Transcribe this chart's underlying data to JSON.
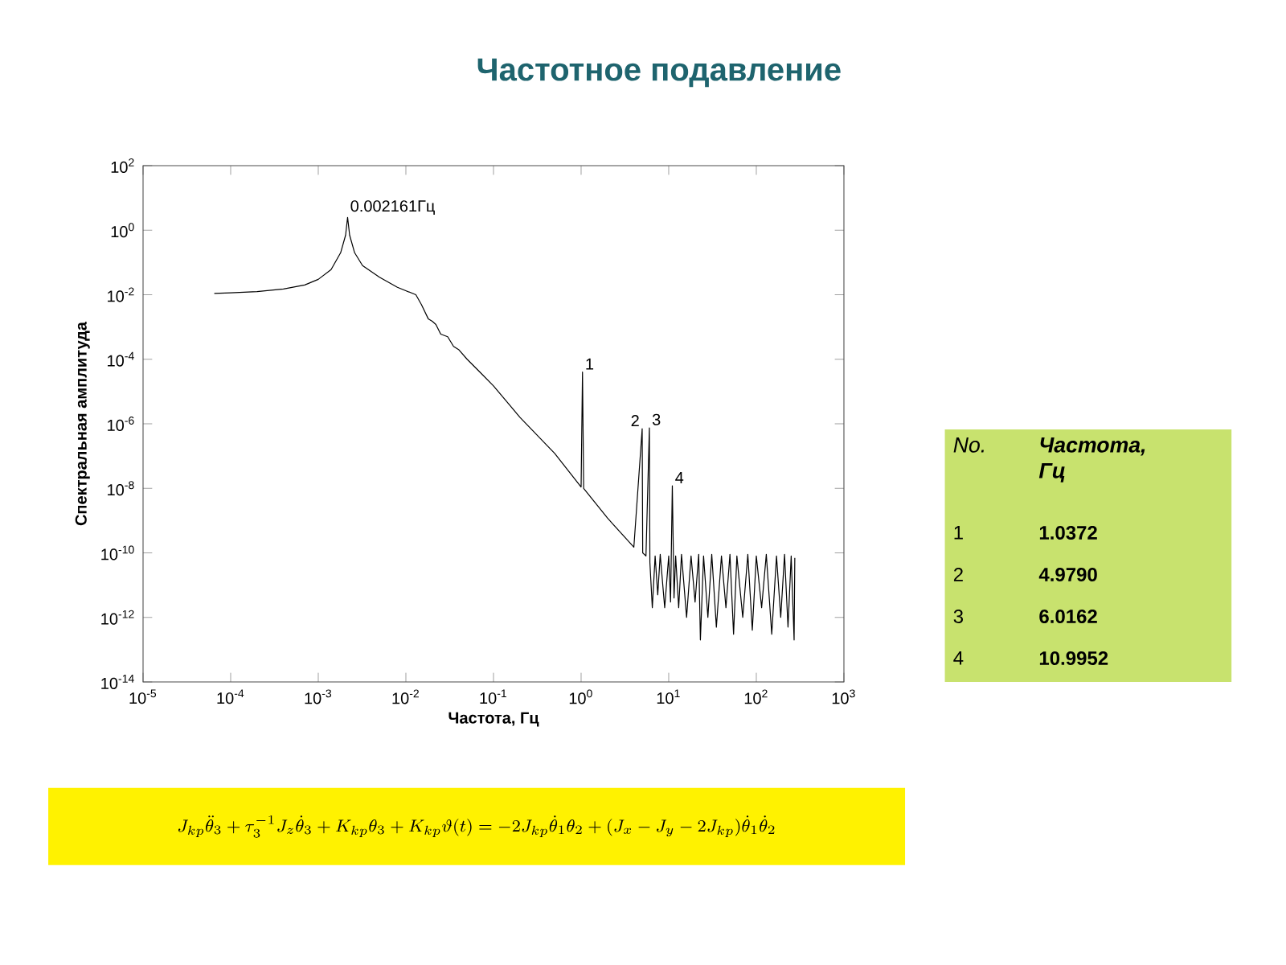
{
  "chart_data": [
    {
      "type": "line",
      "title": "Частотное подавление",
      "xlabel": "Частота, Гц",
      "ylabel": "Спектральная амплитуда",
      "log": "xy",
      "color": "#000000",
      "marker": "none",
      "xlim": [
        1e-05,
        1000
      ],
      "ylim": [
        1e-14,
        100
      ],
      "xticks": [
        {
          "value": 1e-05,
          "label": "10$^{-5}$"
        },
        {
          "value": 0.0001,
          "label": "10$^{-4}$"
        },
        {
          "value": 0.001,
          "label": "10$^{-3}$"
        },
        {
          "value": 0.01,
          "label": "10$^{-2}$"
        },
        {
          "value": 0.1,
          "label": "10$^{-1}$"
        },
        {
          "value": 1,
          "label": "10$^{0}$"
        },
        {
          "value": 10,
          "label": "10$^{1}$"
        },
        {
          "value": 100,
          "label": "10$^{2}$"
        },
        {
          "value": 1000,
          "label": "10$^{3}$"
        }
      ],
      "yticks": [
        {
          "value": 1e-14,
          "label": "10$^{-14}$"
        },
        {
          "value": 1e-12,
          "label": "10$^{-12}$"
        },
        {
          "value": 1e-10,
          "label": "10$^{-10}$"
        },
        {
          "value": 1e-08,
          "label": "10$^{-8}$"
        },
        {
          "value": 1e-06,
          "label": "10$^{-6}$"
        },
        {
          "value": 0.0001,
          "label": "10$^{-4}$"
        },
        {
          "value": 0.01,
          "label": "10$^{-2}$"
        },
        {
          "value": 1,
          "label": "10$^{0}$"
        },
        {
          "value": 100,
          "label": "10$^{2}$"
        }
      ],
      "x": [
        6.5e-05,
        0.0001,
        0.0002,
        0.0004,
        0.0007,
        0.001,
        0.0014,
        0.0018,
        0.00205,
        0.002161,
        0.00228,
        0.0026,
        0.0032,
        0.005,
        0.008,
        0.013,
        0.015,
        0.018,
        0.02,
        0.022,
        0.025,
        0.03,
        0.035,
        0.04,
        0.05,
        0.07,
        0.1,
        0.2,
        0.5,
        1.0,
        1.0372,
        1.07,
        2,
        4,
        4.979,
        5.05,
        5.5,
        6.0162,
        6.1,
        6.5,
        7,
        7.5,
        8,
        9,
        10,
        10.5,
        10.9952,
        11.5,
        12,
        13,
        14,
        16,
        18,
        20,
        22,
        23,
        25,
        28,
        31,
        35,
        40,
        45,
        50,
        55,
        60,
        70,
        80,
        90,
        100,
        115,
        130,
        150,
        170,
        190,
        210,
        230,
        250,
        270,
        275
      ],
      "values": [
        0.011,
        0.0115,
        0.0125,
        0.015,
        0.02,
        0.03,
        0.06,
        0.2,
        0.7,
        2.5,
        0.7,
        0.2,
        0.08,
        0.035,
        0.017,
        0.01,
        0.005,
        0.0018,
        0.0015,
        0.0012,
        0.0006,
        0.0005,
        0.00025,
        0.0002,
        0.0001,
        4e-05,
        1.5e-05,
        1.6e-06,
        1.2e-07,
        1.1e-08,
        4e-05,
        1e-08,
        1.2e-09,
        1.5e-10,
        7e-07,
        1e-10,
        8e-11,
        7.5e-07,
        5e-11,
        2e-12,
        8e-11,
        5e-12,
        9e-11,
        2e-12,
        8e-11,
        3e-12,
        1.2e-08,
        4e-12,
        8e-11,
        2e-12,
        9e-11,
        1e-12,
        8e-11,
        3e-12,
        9e-11,
        2e-13,
        8e-11,
        1e-12,
        9e-11,
        5e-13,
        8e-11,
        2e-12,
        9e-11,
        3e-13,
        8e-11,
        1e-12,
        9e-11,
        4e-13,
        8e-11,
        2e-12,
        9e-11,
        3e-13,
        8e-11,
        1e-12,
        9e-11,
        5e-13,
        8e-11,
        2e-13,
        7e-11
      ],
      "annotations": [
        {
          "text": "0.002161Гц",
          "x": 0.002161,
          "y": 2.5
        },
        {
          "text": "1",
          "x": 1.0372,
          "y": 4e-05
        },
        {
          "text": "2",
          "x": 4.979,
          "y": 7e-07
        },
        {
          "text": "3",
          "x": 6.0162,
          "y": 7.5e-07
        },
        {
          "text": "4",
          "x": 10.9952,
          "y": 1.2e-08
        },
        "No.",
        "Частота, Гц",
        "1",
        "1.0372",
        "2",
        "4.9790",
        "3",
        "6.0162",
        "4",
        "10.9952",
        "J_{kp}\\ddot{\\theta}_3+\\tau_3^{-1}J_z\\dot{\\theta}_3+K_{kp}\\theta_3+K_{kp}\\vartheta(t)=-2J_{kp}\\dot{\\theta}_1\\theta_2+(J_x-J_y-2J_{kp})\\dot{\\theta}_1\\dot{\\theta}_2"
      ]
    }
  ]
}
